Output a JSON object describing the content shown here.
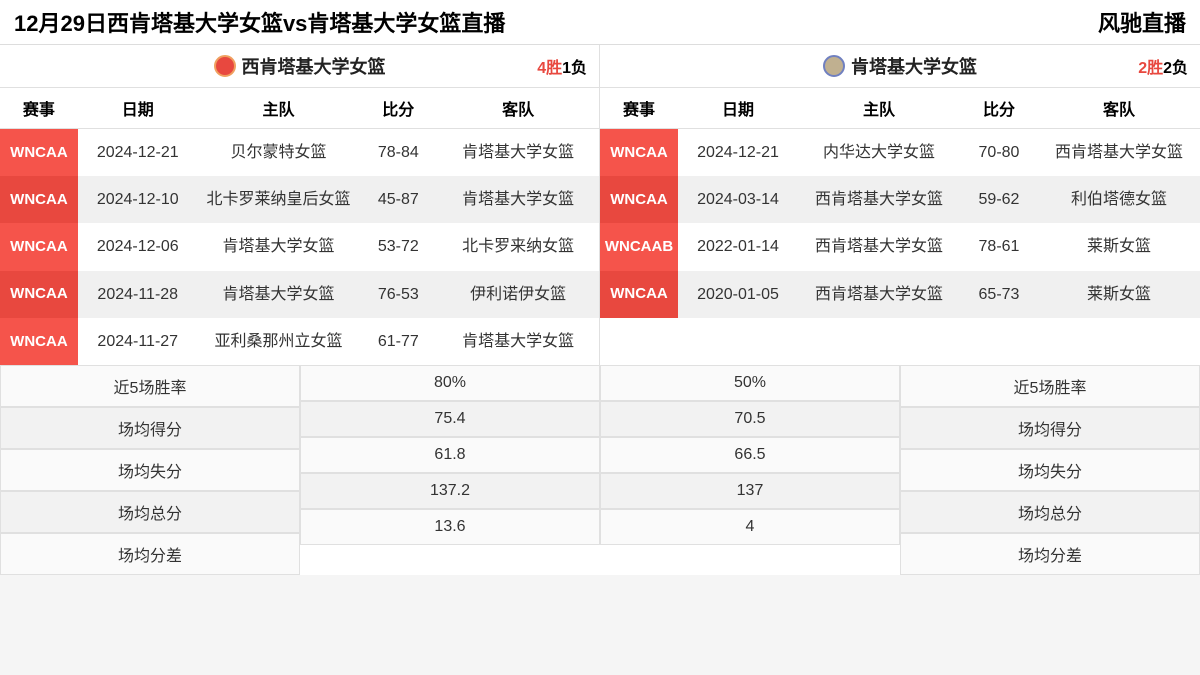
{
  "header": {
    "title": "12月29日西肯塔基大学女篮vs肯塔基大学女篮直播",
    "brand": "风驰直播"
  },
  "columns": [
    "赛事",
    "日期",
    "主队",
    "比分",
    "客队"
  ],
  "colors": {
    "league_bg": "#f5544b",
    "league_bg_alt": "#e8483f",
    "win_color": "#e8483f",
    "row_alt_bg": "#f0f0f0"
  },
  "left": {
    "team": "西肯塔基大学女篮",
    "record_win": "4胜",
    "record_loss": "1负",
    "games": [
      {
        "league": "WNCAA",
        "date": "2024-12-21",
        "home": "贝尔蒙特女篮",
        "score": "78-84",
        "away": "肯塔基大学女篮"
      },
      {
        "league": "WNCAA",
        "date": "2024-12-10",
        "home": "北卡罗莱纳皇后女篮",
        "score": "45-87",
        "away": "肯塔基大学女篮"
      },
      {
        "league": "WNCAA",
        "date": "2024-12-06",
        "home": "肯塔基大学女篮",
        "score": "53-72",
        "away": "北卡罗来纳女篮"
      },
      {
        "league": "WNCAA",
        "date": "2024-11-28",
        "home": "肯塔基大学女篮",
        "score": "76-53",
        "away": "伊利诺伊女篮"
      },
      {
        "league": "WNCAA",
        "date": "2024-11-27",
        "home": "亚利桑那州立女篮",
        "score": "61-77",
        "away": "肯塔基大学女篮"
      }
    ]
  },
  "right": {
    "team": "肯塔基大学女篮",
    "record_win": "2胜",
    "record_loss": "2负",
    "games": [
      {
        "league": "WNCAA",
        "date": "2024-12-21",
        "home": "内华达大学女篮",
        "score": "70-80",
        "away": "西肯塔基大学女篮"
      },
      {
        "league": "WNCAA",
        "date": "2024-03-14",
        "home": "西肯塔基大学女篮",
        "score": "59-62",
        "away": "利伯塔德女篮"
      },
      {
        "league": "WNCAAB",
        "date": "2022-01-14",
        "home": "西肯塔基大学女篮",
        "score": "78-61",
        "away": "莱斯女篮"
      },
      {
        "league": "WNCAA",
        "date": "2020-01-05",
        "home": "西肯塔基大学女篮",
        "score": "65-73",
        "away": "莱斯女篮"
      }
    ]
  },
  "stats": {
    "labels": [
      "近5场胜率",
      "场均得分",
      "场均失分",
      "场均总分",
      "场均分差"
    ],
    "left_values": [
      "80%",
      "75.4",
      "61.8",
      "137.2",
      "13.6"
    ],
    "right_values": [
      "50%",
      "70.5",
      "66.5",
      "137",
      "4"
    ]
  }
}
